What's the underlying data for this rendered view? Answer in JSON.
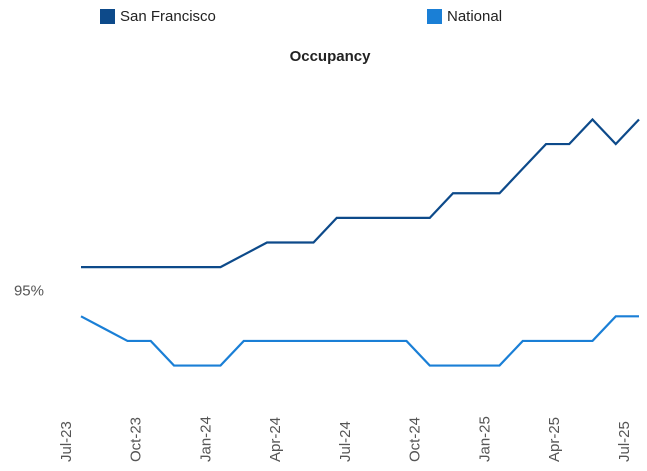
{
  "chart_data": {
    "type": "line",
    "title": "Occupancy",
    "categories": [
      "Jul-23",
      null,
      null,
      "Oct-23",
      null,
      null,
      "Jan-24",
      null,
      null,
      "Apr-24",
      null,
      null,
      "Jul-24",
      null,
      null,
      "Oct-24",
      null,
      null,
      "Jan-25",
      null,
      null,
      "Apr-25",
      null,
      null,
      "Jul-25"
    ],
    "series": [
      {
        "name": "San Francisco",
        "color": "#0d4a8a",
        "values": [
          95.1,
          95.1,
          95.1,
          95.1,
          95.1,
          95.1,
          95.1,
          95.15,
          95.2,
          95.2,
          95.2,
          95.3,
          95.3,
          95.3,
          95.3,
          95.3,
          95.4,
          95.4,
          95.4,
          95.5,
          95.6,
          95.6,
          95.7,
          95.6,
          95.7
        ]
      },
      {
        "name": "National",
        "color": "#1a7fd6",
        "values": [
          94.9,
          94.85,
          94.8,
          94.8,
          94.7,
          94.7,
          94.7,
          94.8,
          94.8,
          94.8,
          94.8,
          94.8,
          94.8,
          94.8,
          94.8,
          94.7,
          94.7,
          94.7,
          94.7,
          94.8,
          94.8,
          94.8,
          94.8,
          94.9,
          94.9
        ]
      }
    ],
    "ylim": [
      94.56,
      95.84
    ],
    "yticks": [
      {
        "value": 95,
        "label": "95%"
      }
    ]
  }
}
